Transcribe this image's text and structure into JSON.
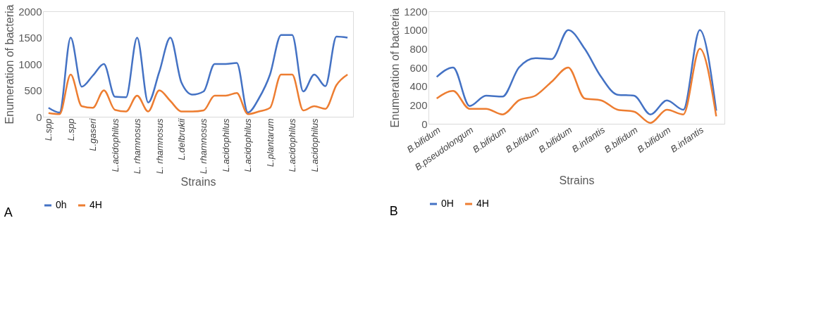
{
  "chart_data": [
    {
      "type": "line",
      "xlabel": "Strains",
      "ylabel": "Enumeration of bacteria",
      "annotations": [
        "A"
      ],
      "legend": "bottom",
      "grid": false,
      "line_style": "solid",
      "marker": "none",
      "categories": [
        "L.spp",
        null,
        "L.spp",
        null,
        "L.gaseri",
        null,
        "L.acidophilus",
        null,
        "L. rhamnosus",
        null,
        "L. rhamnosus",
        null,
        "L.delbrukii",
        null,
        "L. rhamnosus",
        null,
        "L.acidophilus",
        null,
        "L.acidophilus",
        null,
        "L.plantarum",
        null,
        "L.acidophilus",
        null,
        "L.acidophilus",
        null,
        null,
        null
      ],
      "ylim": [
        0,
        2000
      ],
      "yticks": [
        0,
        500,
        1000,
        1500,
        2000
      ],
      "series": [
        {
          "name": "0h",
          "color": "#4472c4",
          "values": [
            170,
            80,
            1500,
            570,
            780,
            1000,
            380,
            370,
            1500,
            270,
            850,
            1500,
            650,
            420,
            480,
            1000,
            1000,
            1020,
            80,
            350,
            800,
            1550,
            1550,
            480,
            800,
            580,
            1520,
            1500
          ]
        },
        {
          "name": "4H",
          "color": "#ed7d31",
          "values": [
            70,
            50,
            800,
            200,
            170,
            500,
            130,
            100,
            400,
            100,
            500,
            300,
            100,
            100,
            120,
            400,
            400,
            450,
            50,
            100,
            170,
            800,
            800,
            120,
            200,
            150,
            600,
            800
          ]
        }
      ]
    },
    {
      "type": "line",
      "xlabel": "Strains",
      "ylabel": "Enumeration of bacteria",
      "annotations": [
        "B"
      ],
      "legend": "bottom",
      "grid": false,
      "line_style": "solid",
      "marker": "none",
      "categories": [
        "B.bifidum",
        null,
        "B.pseudolongum",
        null,
        "B.bifidum",
        null,
        "B.bifidum",
        null,
        "B.bifidum",
        null,
        "B.infantis",
        null,
        "B.bifidum",
        null,
        "B.bifidum",
        null,
        "B.infantis",
        null
      ],
      "ylim": [
        0,
        1200
      ],
      "yticks": [
        0,
        200,
        400,
        600,
        800,
        1000,
        1200
      ],
      "series": [
        {
          "name": "0H",
          "color": "#4472c4",
          "values": [
            500,
            600,
            190,
            300,
            290,
            600,
            700,
            690,
            1000,
            800,
            500,
            310,
            300,
            100,
            250,
            150,
            1000,
            140
          ]
        },
        {
          "name": "4H",
          "color": "#ed7d31",
          "values": [
            270,
            350,
            160,
            160,
            100,
            250,
            300,
            450,
            600,
            270,
            250,
            150,
            130,
            10,
            150,
            100,
            800,
            80
          ]
        }
      ]
    }
  ]
}
